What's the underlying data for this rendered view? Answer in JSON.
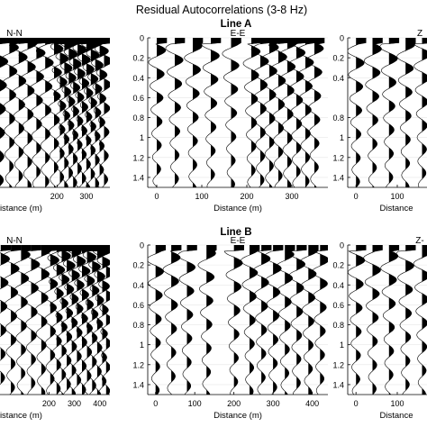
{
  "figure": {
    "title": "Residual Autocorrelations (3-8 Hz)"
  },
  "rows": [
    {
      "label": "Line A"
    },
    {
      "label": "Line B"
    }
  ],
  "chart_data": [
    {
      "type": "wiggle-trace",
      "row": "Line A",
      "component": "N-N",
      "panel_title": "N-N",
      "xlabel": "Distance (m)",
      "xticks": [
        200,
        300
      ],
      "xlim": [
        0,
        380
      ],
      "ylim": [
        0,
        1.5
      ],
      "yticks": [
        "0",
        "0.2",
        "0.4",
        "0.6",
        "0.8",
        "1",
        "1.2",
        "1.4"
      ],
      "show_yticks": false,
      "trace_x": [
        5,
        38,
        70,
        100,
        130,
        160,
        190,
        210,
        225,
        240,
        255,
        270,
        285,
        300,
        315,
        330,
        345,
        360
      ],
      "grid": true
    },
    {
      "type": "wiggle-trace",
      "row": "Line A",
      "component": "E-E",
      "panel_title": "E-E",
      "xlabel": "Distance (m)",
      "xticks": [
        0,
        100,
        200,
        300
      ],
      "xlim": [
        -20,
        380
      ],
      "ylim": [
        0,
        1.5
      ],
      "yticks": [
        "0",
        "0.2",
        "0.4",
        "0.6",
        "0.8",
        "1",
        "1.2",
        "1.4"
      ],
      "show_yticks": true,
      "trace_x": [
        0,
        40,
        80,
        120,
        165,
        210,
        230,
        250,
        270,
        290,
        310,
        330,
        350
      ],
      "grid": true
    },
    {
      "type": "wiggle-trace",
      "row": "Line A",
      "component": "Z-Z",
      "panel_title": "Z",
      "xlabel": "Distance",
      "xticks": [
        0,
        100
      ],
      "xlim": [
        -20,
        220
      ],
      "ylim": [
        0,
        1.5
      ],
      "yticks": [
        "0",
        "0.2",
        "0.4",
        "0.8",
        "1",
        "1.2",
        "1.4"
      ],
      "show_yticks": true,
      "trace_x": [
        0,
        40,
        80,
        120,
        160,
        200
      ],
      "grid": true
    },
    {
      "type": "wiggle-trace",
      "row": "Line B",
      "component": "N-N",
      "panel_title": "N-N",
      "xlabel": "Distance (m)",
      "xticks": [
        200,
        300,
        400
      ],
      "xlim": [
        0,
        440
      ],
      "ylim": [
        0,
        1.5
      ],
      "yticks": [
        "0",
        "0.2",
        "0.4",
        "0.6",
        "0.8",
        "1",
        "1.2",
        "1.4"
      ],
      "show_yticks": false,
      "trace_x": [
        10,
        50,
        90,
        130,
        170,
        205,
        230,
        250,
        270,
        290,
        310,
        330,
        350,
        370,
        390,
        410,
        425
      ],
      "grid": true
    },
    {
      "type": "wiggle-trace",
      "row": "Line B",
      "component": "E-E",
      "panel_title": "E-E",
      "xlabel": "Distance (m)",
      "xticks": [
        0,
        100,
        200,
        300,
        400
      ],
      "xlim": [
        -20,
        440
      ],
      "ylim": [
        0,
        1.5
      ],
      "yticks": [
        "0",
        "0.2",
        "0.4",
        "0.6",
        "0.8",
        "1",
        "1.2",
        "1.4"
      ],
      "show_yticks": true,
      "trace_x": [
        0,
        40,
        80,
        130,
        200,
        240,
        270,
        300,
        330,
        360,
        390,
        420
      ],
      "grid": true
    },
    {
      "type": "wiggle-trace",
      "row": "Line B",
      "component": "Z-Z",
      "panel_title": "Z-",
      "xlabel": "Distance",
      "xticks": [
        0,
        100
      ],
      "xlim": [
        -20,
        220
      ],
      "ylim": [
        0,
        1.5
      ],
      "yticks": [
        "0",
        "0.2",
        "0.4",
        "0.6",
        "0.8",
        "1",
        "1.2",
        "1.4"
      ],
      "show_yticks": true,
      "trace_x": [
        0,
        40,
        80,
        120,
        160,
        200
      ],
      "grid": true
    }
  ]
}
